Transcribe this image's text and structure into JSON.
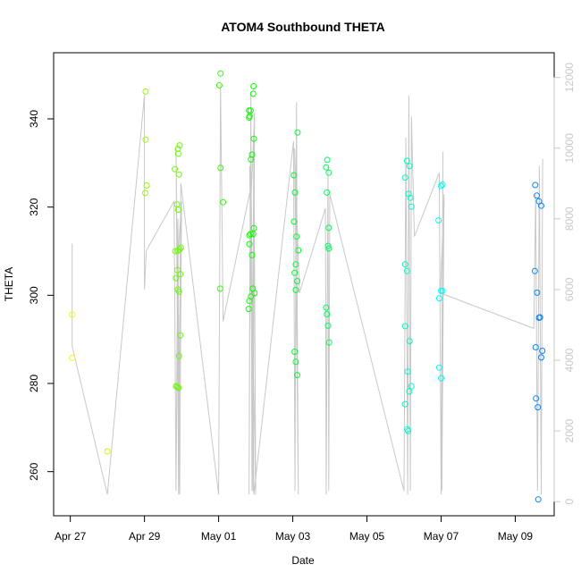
{
  "chart_data": {
    "type": "scatter",
    "title": "ATOM4 Southbound THETA",
    "xlabel": "Date",
    "ylabel": "THETA",
    "x_ticks": [
      {
        "label": "Apr 27",
        "day": 0
      },
      {
        "label": "Apr 29",
        "day": 2
      },
      {
        "label": "May 01",
        "day": 4
      },
      {
        "label": "May 03",
        "day": 6
      },
      {
        "label": "May 05",
        "day": 8
      },
      {
        "label": "May 07",
        "day": 10
      },
      {
        "label": "May 09",
        "day": 12
      }
    ],
    "xlim_days": [
      -0.45,
      13.05
    ],
    "y_ticks": [
      260,
      280,
      300,
      320,
      340
    ],
    "ylim": [
      250,
      355
    ],
    "y2_label": "",
    "y2_ticks": [
      0,
      2000,
      4000,
      6000,
      8000,
      10000,
      12000
    ],
    "y2lim": [
      -400,
      12700
    ],
    "points": [
      [
        0.05,
        295.6
      ],
      [
        0.05,
        285.8
      ],
      [
        1.0,
        264.6
      ],
      [
        2.03,
        346.2
      ],
      [
        2.03,
        335.3
      ],
      [
        2.06,
        324.9
      ],
      [
        2.02,
        323.2
      ],
      [
        2.82,
        328.6
      ],
      [
        2.9,
        333.2
      ],
      [
        2.91,
        332.1
      ],
      [
        2.95,
        334.0
      ],
      [
        2.93,
        327.4
      ],
      [
        2.88,
        320.6
      ],
      [
        2.91,
        319.4
      ],
      [
        2.95,
        310.4
      ],
      [
        2.98,
        310.8
      ],
      [
        2.9,
        310.1
      ],
      [
        2.83,
        310.0
      ],
      [
        2.89,
        305.7
      ],
      [
        2.97,
        304.8
      ],
      [
        2.85,
        303.9
      ],
      [
        2.9,
        301.3
      ],
      [
        2.93,
        300.8
      ],
      [
        2.97,
        290.9
      ],
      [
        2.93,
        286.2
      ],
      [
        2.85,
        279.4
      ],
      [
        2.88,
        279.2
      ],
      [
        2.92,
        279.0
      ],
      [
        4.05,
        350.3
      ],
      [
        4.02,
        347.6
      ],
      [
        4.05,
        328.9
      ],
      [
        4.12,
        321.1
      ],
      [
        4.04,
        301.5
      ],
      [
        4.82,
        341.9
      ],
      [
        4.86,
        341.9
      ],
      [
        4.84,
        340.6
      ],
      [
        4.82,
        340.3
      ],
      [
        4.94,
        347.4
      ],
      [
        4.93,
        345.7
      ],
      [
        4.95,
        335.5
      ],
      [
        4.9,
        331.9
      ],
      [
        4.87,
        330.8
      ],
      [
        4.95,
        315.2
      ],
      [
        4.93,
        313.9
      ],
      [
        4.83,
        313.6
      ],
      [
        4.86,
        313.9
      ],
      [
        4.83,
        311.6
      ],
      [
        4.9,
        309.1
      ],
      [
        4.92,
        301.5
      ],
      [
        4.97,
        300.5
      ],
      [
        4.87,
        299.7
      ],
      [
        4.83,
        298.7
      ],
      [
        4.81,
        296.9
      ],
      [
        6.03,
        327.2
      ],
      [
        6.13,
        336.9
      ],
      [
        6.06,
        323.3
      ],
      [
        6.03,
        316.7
      ],
      [
        6.1,
        313.3
      ],
      [
        6.15,
        310.2
      ],
      [
        6.08,
        307.0
      ],
      [
        6.05,
        305.1
      ],
      [
        6.12,
        303.2
      ],
      [
        6.08,
        301.2
      ],
      [
        6.05,
        287.2
      ],
      [
        6.08,
        284.9
      ],
      [
        6.12,
        281.9
      ],
      [
        6.93,
        330.7
      ],
      [
        6.9,
        329.0
      ],
      [
        6.97,
        327.8
      ],
      [
        6.92,
        323.3
      ],
      [
        6.97,
        315.3
      ],
      [
        6.95,
        311.2
      ],
      [
        6.97,
        310.6
      ],
      [
        6.9,
        297.2
      ],
      [
        6.92,
        295.7
      ],
      [
        6.95,
        293.1
      ],
      [
        6.98,
        289.3
      ],
      [
        9.03,
        326.7
      ],
      [
        9.08,
        330.5
      ],
      [
        9.15,
        329.3
      ],
      [
        9.12,
        323.0
      ],
      [
        9.17,
        322.1
      ],
      [
        9.2,
        320.1
      ],
      [
        9.03,
        307.0
      ],
      [
        9.08,
        305.5
      ],
      [
        9.03,
        293.0
      ],
      [
        9.15,
        289.6
      ],
      [
        9.1,
        282.7
      ],
      [
        9.14,
        278.2
      ],
      [
        9.2,
        279.4
      ],
      [
        9.03,
        275.3
      ],
      [
        9.09,
        269.6
      ],
      [
        9.11,
        269.2
      ],
      [
        10.0,
        324.8
      ],
      [
        10.04,
        325.1
      ],
      [
        9.93,
        317.0
      ],
      [
        10.0,
        301.0
      ],
      [
        10.04,
        301.0
      ],
      [
        9.95,
        299.3
      ],
      [
        9.95,
        283.6
      ],
      [
        10.0,
        281.2
      ],
      [
        12.54,
        325.0
      ],
      [
        12.58,
        322.6
      ],
      [
        12.64,
        321.3
      ],
      [
        12.7,
        320.3
      ],
      [
        12.53,
        305.5
      ],
      [
        12.59,
        300.6
      ],
      [
        12.64,
        294.9
      ],
      [
        12.67,
        295.0
      ],
      [
        12.55,
        288.2
      ],
      [
        12.73,
        287.4
      ],
      [
        12.7,
        285.9
      ],
      [
        12.56,
        276.6
      ],
      [
        12.61,
        274.6
      ],
      [
        12.62,
        253.7
      ]
    ],
    "line_y2": [
      [
        0.05,
        7300
      ],
      [
        0.05,
        4400
      ],
      [
        1.0,
        200
      ],
      [
        2.0,
        11500
      ],
      [
        2.0,
        6000
      ],
      [
        2.05,
        7100
      ],
      [
        2.8,
        8500
      ],
      [
        2.85,
        300
      ],
      [
        2.9,
        8000
      ],
      [
        2.95,
        200
      ],
      [
        3.0,
        8500
      ],
      [
        2.88,
        6500
      ],
      [
        2.95,
        300
      ],
      [
        2.85,
        10000
      ],
      [
        2.92,
        200
      ],
      [
        2.98,
        9000
      ],
      [
        4.0,
        200
      ],
      [
        4.05,
        11800
      ],
      [
        4.12,
        5100
      ],
      [
        4.85,
        8800
      ],
      [
        4.82,
        200
      ],
      [
        4.87,
        11600
      ],
      [
        4.9,
        300
      ],
      [
        4.95,
        10500
      ],
      [
        5.0,
        200
      ],
      [
        4.84,
        9500
      ],
      [
        4.93,
        300
      ],
      [
        4.97,
        11000
      ],
      [
        4.88,
        8700
      ],
      [
        4.95,
        200
      ],
      [
        6.02,
        10200
      ],
      [
        6.06,
        300
      ],
      [
        6.1,
        11300
      ],
      [
        6.12,
        5500
      ],
      [
        6.15,
        200
      ],
      [
        6.05,
        10000
      ],
      [
        6.18,
        5900
      ],
      [
        6.88,
        8300
      ],
      [
        6.9,
        200
      ],
      [
        6.95,
        9500
      ],
      [
        6.97,
        300
      ],
      [
        7.0,
        8700
      ],
      [
        9.0,
        300
      ],
      [
        9.05,
        10300
      ],
      [
        9.1,
        200
      ],
      [
        9.13,
        11500
      ],
      [
        9.17,
        300
      ],
      [
        9.2,
        10900
      ],
      [
        9.28,
        7500
      ],
      [
        9.95,
        9300
      ],
      [
        10.0,
        200
      ],
      [
        10.05,
        9900
      ],
      [
        10.02,
        300
      ],
      [
        10.08,
        8700
      ],
      [
        9.98,
        5900
      ],
      [
        12.5,
        4900
      ],
      [
        12.55,
        8700
      ],
      [
        12.6,
        300
      ],
      [
        12.65,
        9500
      ],
      [
        12.7,
        200
      ],
      [
        12.74,
        9700
      ]
    ]
  }
}
